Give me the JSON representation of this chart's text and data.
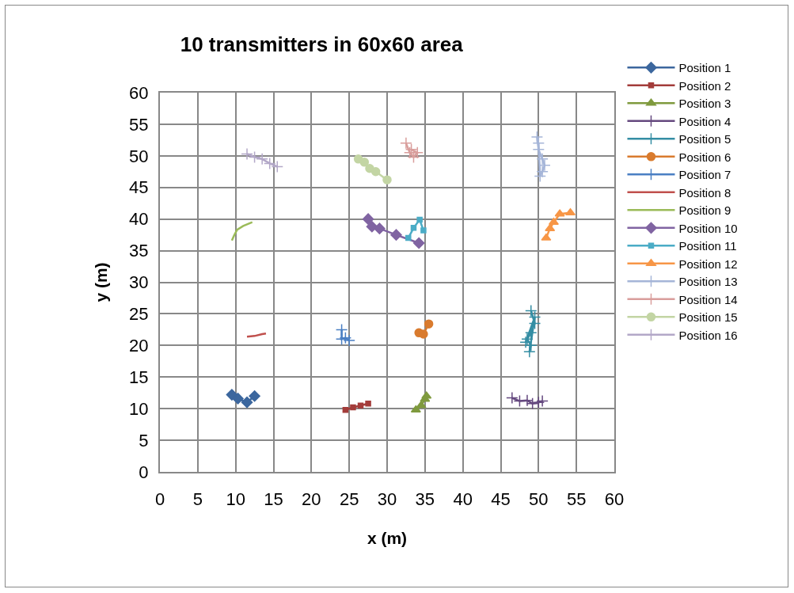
{
  "chart_data": {
    "type": "line",
    "title": "10 transmitters in 60x60 area",
    "xlabel": "x (m)",
    "ylabel": "y (m)",
    "xlim": [
      0,
      60
    ],
    "xticks": [
      0,
      5,
      10,
      15,
      20,
      25,
      30,
      35,
      40,
      45,
      50,
      55,
      60
    ],
    "ylim": [
      0,
      60
    ],
    "yticks": [
      0,
      5,
      10,
      15,
      20,
      25,
      30,
      35,
      40,
      45,
      50,
      55,
      60
    ],
    "grid": true,
    "legend": "right",
    "series": [
      {
        "name": "Position 1",
        "color": "#3c679e",
        "marker": "diamond",
        "x": [
          9.5,
          10.3,
          11.5,
          12.5
        ],
        "values": [
          12.2,
          11.6,
          11.0,
          12.0
        ]
      },
      {
        "name": "Position 2",
        "color": "#a33c3a",
        "marker": "square",
        "x": [
          24.5,
          25.5,
          26.5,
          27.5
        ],
        "values": [
          9.8,
          10.2,
          10.5,
          10.8
        ]
      },
      {
        "name": "Position 3",
        "color": "#7f9a3e",
        "marker": "triangle",
        "x": [
          33.8,
          34.5,
          35.0,
          35.2
        ],
        "values": [
          9.8,
          10.5,
          11.5,
          12.0
        ]
      },
      {
        "name": "Position 4",
        "color": "#65497f",
        "marker": "cross",
        "x": [
          46.5,
          47.5,
          48.5,
          49.2,
          50.0,
          50.5
        ],
        "values": [
          11.7,
          11.2,
          11.3,
          10.8,
          11.0,
          11.2
        ]
      },
      {
        "name": "Position 5",
        "color": "#358ea4",
        "marker": "cross",
        "x": [
          49.0,
          49.5,
          49.0,
          48.5,
          49.0,
          48.8,
          49.5,
          48.3
        ],
        "values": [
          25.5,
          23.5,
          22.0,
          21.0,
          20.0,
          19.0,
          24.5,
          20.5
        ]
      },
      {
        "name": "Position 6",
        "color": "#d97b2e",
        "marker": "circle",
        "x": [
          34.2,
          34.8,
          35.5
        ],
        "values": [
          22.0,
          21.8,
          23.4
        ]
      },
      {
        "name": "Position 7",
        "color": "#4a7fc3",
        "marker": "cross",
        "x": [
          24.0,
          24.0,
          24.5,
          25.0
        ],
        "values": [
          22.5,
          21.0,
          21.2,
          20.8
        ]
      },
      {
        "name": "Position 8",
        "color": "#c0504d",
        "marker": "none",
        "x": [
          11.5,
          12.5,
          13.5,
          14.0
        ],
        "values": [
          21.4,
          21.5,
          21.8,
          21.9
        ]
      },
      {
        "name": "Position 9",
        "color": "#9bbb59",
        "marker": "none",
        "x": [
          9.5,
          9.8,
          10.2,
          11.0,
          12.2
        ],
        "values": [
          36.6,
          37.4,
          38.3,
          38.9,
          39.5
        ]
      },
      {
        "name": "Position 10",
        "color": "#8064a2",
        "marker": "diamond",
        "x": [
          27.5,
          28.0,
          29.0,
          31.2,
          34.2
        ],
        "values": [
          40.0,
          38.8,
          38.5,
          37.5,
          36.2
        ]
      },
      {
        "name": "Position 11",
        "color": "#4bacc6",
        "marker": "square",
        "x": [
          32.8,
          33.5,
          34.3,
          34.8
        ],
        "values": [
          37.0,
          38.6,
          39.9,
          38.2
        ]
      },
      {
        "name": "Position 12",
        "color": "#f79646",
        "marker": "triangle",
        "x": [
          51.0,
          51.5,
          52.0,
          52.8,
          54.2
        ],
        "values": [
          37.0,
          38.5,
          39.5,
          40.8,
          41.0
        ]
      },
      {
        "name": "Position 13",
        "color": "#a5b5d8",
        "marker": "cross",
        "x": [
          49.8,
          50.0,
          50.5,
          50.8,
          50.5,
          50.2,
          50.0
        ],
        "values": [
          53.0,
          51.0,
          49.5,
          48.5,
          47.5,
          46.8,
          52.0
        ]
      },
      {
        "name": "Position 14",
        "color": "#d99e9c",
        "marker": "cross",
        "x": [
          32.5,
          33.0,
          33.5,
          34.0,
          33.2
        ],
        "values": [
          52.0,
          50.5,
          49.8,
          50.5,
          51.0
        ]
      },
      {
        "name": "Position 15",
        "color": "#c3d5a4",
        "marker": "circle",
        "x": [
          26.2,
          27.0,
          27.7,
          28.5,
          30.0
        ],
        "values": [
          49.5,
          49.0,
          48.0,
          47.5,
          46.2
        ]
      },
      {
        "name": "Position 16",
        "color": "#b3a8c8",
        "marker": "cross",
        "x": [
          11.5,
          12.5,
          13.5,
          14.5,
          15.5
        ],
        "values": [
          50.3,
          49.8,
          49.5,
          48.8,
          48.3
        ]
      }
    ]
  }
}
